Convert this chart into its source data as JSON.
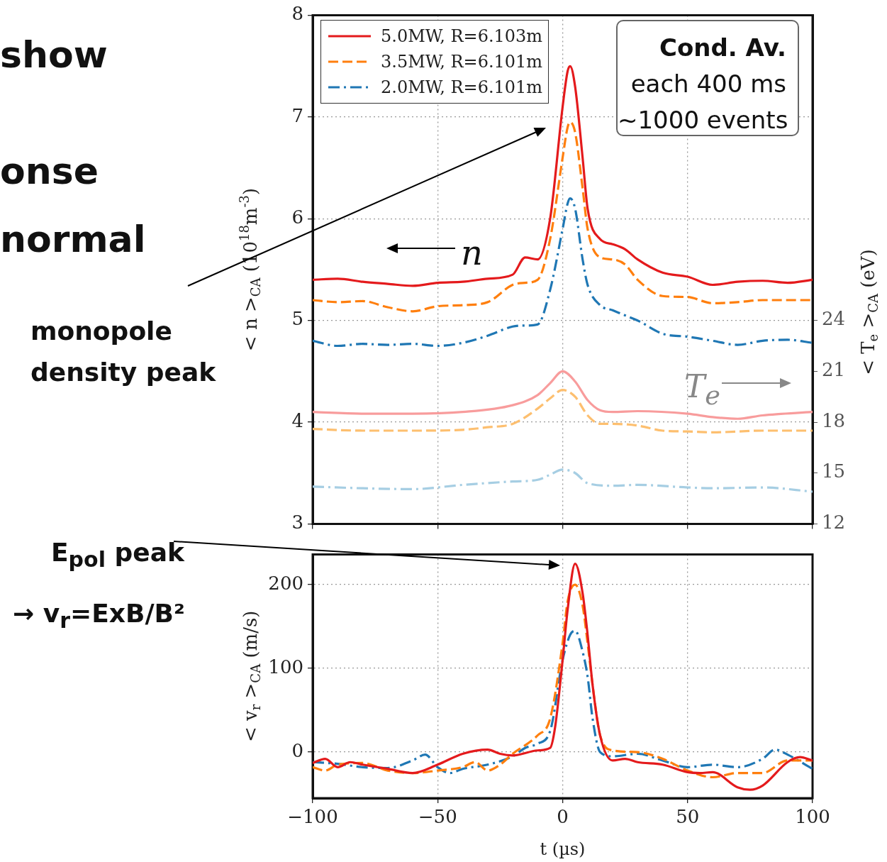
{
  "chart_data": [
    {
      "type": "line",
      "ylabel": "< n >$_{CA}$ (10$^{18}$m$^{-3}$)",
      "y2label": "< T$_{e}$ >$_{CA}$ (eV)",
      "xlim": [
        -100,
        100
      ],
      "xticks": [
        -100,
        -50,
        0,
        50,
        100
      ],
      "ylim": [
        3,
        8
      ],
      "yticks": [
        3,
        4,
        5,
        6,
        7,
        8
      ],
      "y2lim": [
        12,
        42
      ],
      "y2ticks": [
        12,
        15,
        18,
        21,
        24
      ],
      "grid": true,
      "legend": "top left",
      "tick_labels": "y",
      "annotations": [
        "Cond. Av.",
        "each 400 ms",
        "~1000 events",
        "n",
        "T$_{e}$",
        "show",
        "onse",
        "normal",
        "monopole density peak"
      ],
      "series": [
        {
          "name": "5.0MW, R=6.103m",
          "color": "#e41a1c",
          "line_style": "solid",
          "x": [
            -100,
            -90,
            -80,
            -70,
            -60,
            -50,
            -40,
            -30,
            -20,
            -15,
            -10,
            -5,
            0,
            2,
            3,
            5,
            8,
            10,
            15,
            20,
            25,
            30,
            40,
            50,
            60,
            70,
            80,
            90,
            100
          ],
          "values": [
            5.4,
            5.41,
            5.38,
            5.36,
            5.34,
            5.37,
            5.38,
            5.41,
            5.45,
            5.62,
            5.6,
            6.0,
            7.1,
            7.45,
            7.5,
            7.3,
            6.6,
            6.1,
            5.8,
            5.75,
            5.7,
            5.6,
            5.47,
            5.43,
            5.35,
            5.38,
            5.39,
            5.37,
            5.4
          ]
        },
        {
          "name": "3.5MW, R=6.101m",
          "color": "#ff7f0e",
          "line_style": "dashed",
          "x": [
            -100,
            -90,
            -80,
            -70,
            -60,
            -50,
            -40,
            -30,
            -20,
            -15,
            -10,
            -5,
            0,
            2,
            3,
            5,
            8,
            10,
            15,
            20,
            25,
            30,
            40,
            50,
            60,
            70,
            80,
            90,
            100
          ],
          "values": [
            5.2,
            5.18,
            5.19,
            5.13,
            5.09,
            5.14,
            5.15,
            5.18,
            5.35,
            5.37,
            5.4,
            5.8,
            6.6,
            6.9,
            6.95,
            6.85,
            6.3,
            5.9,
            5.62,
            5.6,
            5.55,
            5.4,
            5.24,
            5.23,
            5.17,
            5.18,
            5.2,
            5.2,
            5.2
          ]
        },
        {
          "name": "2.0MW, R=6.101m",
          "color": "#1f77b4",
          "line_style": "dashdot",
          "x": [
            -100,
            -90,
            -80,
            -70,
            -60,
            -50,
            -40,
            -30,
            -20,
            -15,
            -10,
            -5,
            0,
            2,
            3,
            5,
            8,
            10,
            15,
            20,
            25,
            30,
            40,
            50,
            60,
            70,
            80,
            90,
            100
          ],
          "values": [
            4.8,
            4.75,
            4.77,
            4.76,
            4.77,
            4.75,
            4.78,
            4.85,
            4.94,
            4.95,
            4.96,
            5.3,
            5.9,
            6.15,
            6.2,
            6.1,
            5.6,
            5.35,
            5.15,
            5.1,
            5.05,
            5.0,
            4.87,
            4.84,
            4.8,
            4.76,
            4.8,
            4.81,
            4.78
          ]
        },
        {
          "color": "#f89c9c",
          "line_style": "solid",
          "axis": "y2",
          "x": [
            -100,
            -80,
            -60,
            -40,
            -20,
            -10,
            -5,
            0,
            5,
            10,
            15,
            20,
            30,
            50,
            60,
            70,
            80,
            100
          ],
          "values": [
            18.6,
            18.5,
            18.5,
            18.6,
            19.0,
            19.6,
            20.3,
            21.0,
            20.4,
            19.3,
            18.7,
            18.6,
            18.65,
            18.5,
            18.3,
            18.2,
            18.4,
            18.6
          ]
        },
        {
          "color": "#fdbf6f",
          "line_style": "dashed",
          "axis": "y2",
          "x": [
            -100,
            -80,
            -60,
            -40,
            -30,
            -20,
            -10,
            -5,
            0,
            5,
            10,
            15,
            20,
            30,
            40,
            50,
            60,
            80,
            100
          ],
          "values": [
            17.6,
            17.5,
            17.5,
            17.55,
            17.7,
            17.9,
            18.8,
            19.4,
            19.9,
            19.5,
            18.4,
            17.9,
            17.9,
            17.8,
            17.5,
            17.45,
            17.4,
            17.5,
            17.5
          ]
        },
        {
          "color": "#a6cee3",
          "line_style": "dashdot",
          "axis": "y2",
          "x": [
            -100,
            -80,
            -60,
            -40,
            -20,
            -10,
            -5,
            0,
            5,
            10,
            20,
            30,
            50,
            60,
            80,
            100
          ],
          "values": [
            14.2,
            14.1,
            14.05,
            14.3,
            14.5,
            14.6,
            14.9,
            15.2,
            15.0,
            14.4,
            14.25,
            14.3,
            14.15,
            14.1,
            14.15,
            13.9
          ]
        }
      ]
    },
    {
      "type": "line",
      "xlabel": "t (µs)",
      "ylabel": "< v$_{r}$ >$_{CA}$ (m/s)",
      "xlim": [
        -100,
        100
      ],
      "xticks": [
        {
          "value": -100,
          "label": "−100"
        },
        {
          "value": -50,
          "label": "−50"
        },
        0,
        50,
        100
      ],
      "ylim": [
        -55,
        236
      ],
      "yticks": [
        0,
        100,
        200
      ],
      "grid": true,
      "annotations": [
        "E$_{pol}$ peak",
        "→ v$_{r}$=ExB/B²"
      ],
      "series": [
        {
          "color": "#e41a1c",
          "line_style": "solid",
          "x": [
            -100,
            -95,
            -90,
            -85,
            -80,
            -70,
            -60,
            -50,
            -40,
            -30,
            -25,
            -20,
            -10,
            -5,
            -3,
            0,
            2,
            5,
            8,
            10,
            12,
            15,
            20,
            25,
            30,
            40,
            50,
            55,
            60,
            70,
            75,
            80,
            90,
            95,
            100
          ],
          "values": [
            -13,
            -8,
            -18,
            -12,
            -15,
            -20,
            -25,
            -15,
            -2,
            3,
            -2,
            -4,
            2,
            5,
            30,
            110,
            170,
            225,
            190,
            140,
            80,
            20,
            -10,
            -8,
            -12,
            -15,
            -24,
            -25,
            -24,
            -42,
            -45,
            -40,
            -12,
            -6,
            -10
          ]
        },
        {
          "color": "#ff7f0e",
          "line_style": "dashed",
          "x": [
            -100,
            -95,
            -90,
            -80,
            -70,
            -60,
            -50,
            -40,
            -35,
            -30,
            -25,
            -20,
            -10,
            -5,
            0,
            2,
            5,
            8,
            10,
            12,
            15,
            20,
            30,
            40,
            50,
            60,
            70,
            80,
            90,
            100
          ],
          "values": [
            -18,
            -22,
            -15,
            -13,
            -22,
            -25,
            -22,
            -18,
            -12,
            -22,
            -15,
            -2,
            20,
            40,
            130,
            180,
            200,
            175,
            130,
            80,
            20,
            2,
            0,
            -8,
            -22,
            -30,
            -25,
            -25,
            -10,
            -10
          ]
        },
        {
          "color": "#1f77b4",
          "line_style": "dashdot",
          "x": [
            -100,
            -90,
            -80,
            -70,
            -60,
            -55,
            -50,
            -45,
            -40,
            -30,
            -20,
            -15,
            -10,
            -5,
            0,
            3,
            5,
            8,
            10,
            12,
            15,
            20,
            30,
            40,
            50,
            60,
            70,
            80,
            85,
            90,
            100
          ],
          "values": [
            -12,
            -14,
            -18,
            -19,
            -10,
            -3,
            -18,
            -25,
            -20,
            -15,
            -5,
            5,
            10,
            25,
            110,
            140,
            145,
            120,
            90,
            40,
            0,
            -5,
            -2,
            -10,
            -18,
            -15,
            -18,
            -8,
            3,
            -3,
            -20
          ]
        }
      ]
    }
  ]
}
